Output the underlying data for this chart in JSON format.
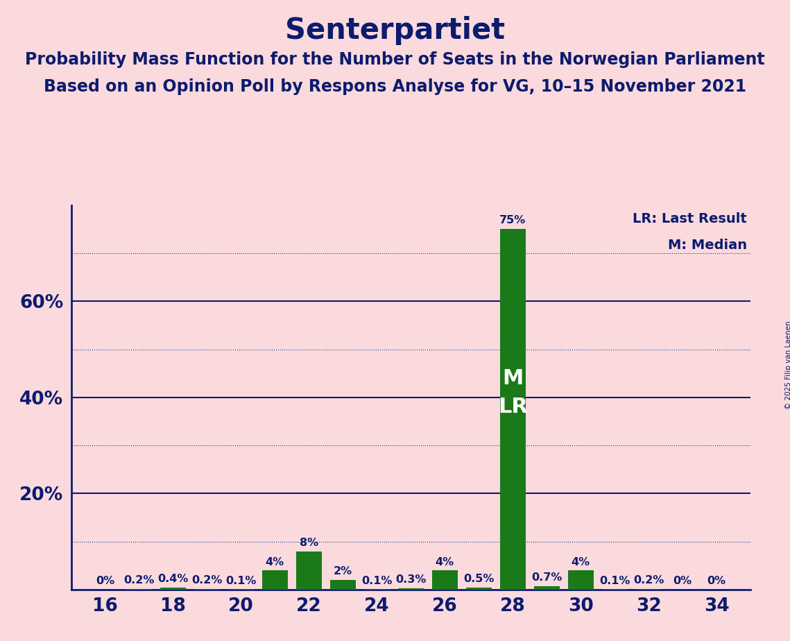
{
  "title": "Senterpartiet",
  "subtitle1": "Probability Mass Function for the Number of Seats in the Norwegian Parliament",
  "subtitle2": "Based on an Opinion Poll by Respons Analyse for VG, 10–15 November 2021",
  "copyright": "© 2025 Filip van Laenen",
  "legend_lr": "LR: Last Result",
  "legend_m": "M: Median",
  "seats": [
    16,
    17,
    18,
    19,
    20,
    21,
    22,
    23,
    24,
    25,
    26,
    27,
    28,
    29,
    30,
    31,
    32,
    34
  ],
  "all_seats": [
    16,
    17,
    18,
    19,
    20,
    21,
    22,
    23,
    24,
    25,
    26,
    27,
    28,
    29,
    30,
    31,
    32,
    33,
    34
  ],
  "all_probs": [
    0.0,
    0.2,
    0.4,
    0.2,
    0.1,
    4.0,
    8.0,
    2.0,
    0.1,
    0.3,
    4.0,
    0.5,
    75.0,
    0.7,
    4.0,
    0.1,
    0.2,
    0.0,
    0.0
  ],
  "bar_color": "#1a7a1a",
  "background_color": "#fadadd",
  "title_color": "#0d1b6e",
  "axis_color": "#0d1b6e",
  "text_color": "#0d1b6e",
  "grid_color_solid": "#0d1b6e",
  "grid_color_dotted": "#1a3a8a",
  "median_seat": 28,
  "last_result_seat": 28,
  "xlim": [
    15.0,
    35.0
  ],
  "ylim": [
    0,
    80
  ],
  "xticks": [
    16,
    18,
    20,
    22,
    24,
    26,
    28,
    30,
    32,
    34
  ],
  "solid_gridlines": [
    20,
    40,
    60
  ],
  "dotted_gridlines": [
    10,
    30,
    50,
    70
  ],
  "bar_label_fontsize": 11.5,
  "title_fontsize": 30,
  "subtitle_fontsize": 17,
  "tick_fontsize": 19,
  "legend_fontsize": 14,
  "ml_fontsize": 22,
  "copyright_fontsize": 7.5
}
